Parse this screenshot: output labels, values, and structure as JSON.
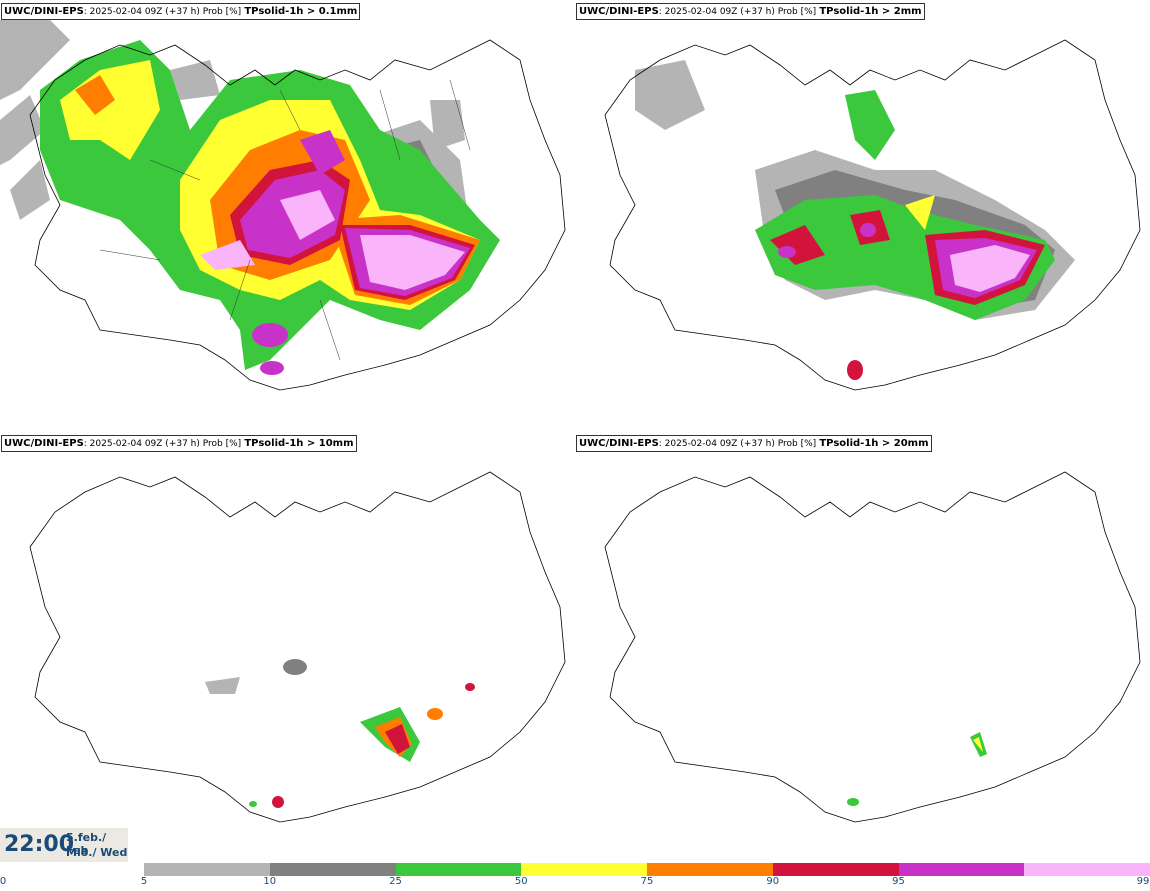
{
  "panels": [
    {
      "model": "UWC/DINI-EPS",
      "meta": ": 2025-02-04 09Z (+37 h) Prob [%]",
      "variable": "TPsolid-1h > 0.1mm"
    },
    {
      "model": "UWC/DINI-EPS",
      "meta": ": 2025-02-04 09Z (+37 h) Prob [%]",
      "variable": "TPsolid-1h > 2mm"
    },
    {
      "model": "UWC/DINI-EPS",
      "meta": ": 2025-02-04 09Z (+37 h) Prob [%]",
      "variable": "TPsolid-1h > 10mm"
    },
    {
      "model": "UWC/DINI-EPS",
      "meta": ": 2025-02-04 09Z (+37 h) Prob [%]",
      "variable": "TPsolid-1h > 20mm"
    }
  ],
  "valid_time": {
    "time": "22:00",
    "date_line1": "5.feb./ Feb",
    "date_line2": "Mið./ Wed"
  },
  "legend": {
    "ticks": [
      "0",
      "5",
      "10",
      "25",
      "50",
      "75",
      "90",
      "95",
      "99"
    ],
    "colors": [
      "#b4b4b4",
      "#808080",
      "#3cc83c",
      "#ffff32",
      "#ff7d00",
      "#d2143c",
      "#c832c8",
      "#fab4fa"
    ]
  }
}
